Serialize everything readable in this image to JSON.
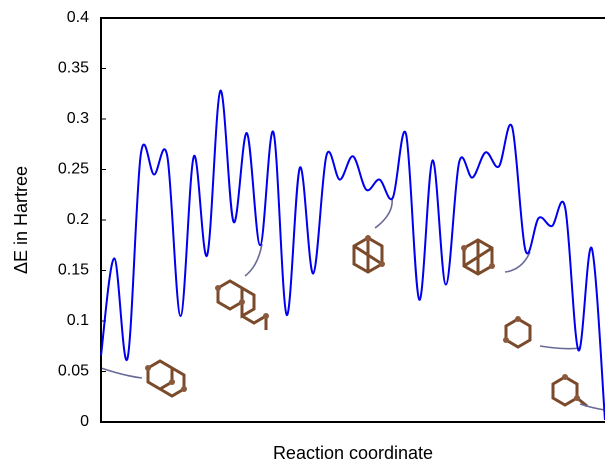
{
  "chart_data": {
    "type": "line",
    "y_label": "ΔE in Hartree",
    "x_label": "Reaction coordinate",
    "color": "#0000ee",
    "values": [
      0.066,
      0.162,
      0.063,
      0.265,
      0.245,
      0.263,
      0.105,
      0.263,
      0.165,
      0.328,
      0.198,
      0.286,
      0.175,
      0.287,
      0.106,
      0.252,
      0.147,
      0.264,
      0.24,
      0.263,
      0.23,
      0.24,
      0.222,
      0.285,
      0.121,
      0.259,
      0.136,
      0.257,
      0.242,
      0.267,
      0.253,
      0.292,
      0.17,
      0.202,
      0.194,
      0.212,
      0.071,
      0.172,
      0.002
    ],
    "ylim": [
      0,
      0.4
    ],
    "yticks": [
      0,
      0.05,
      0.1,
      0.15,
      0.2,
      0.25,
      0.3,
      0.35,
      0.4
    ]
  }
}
